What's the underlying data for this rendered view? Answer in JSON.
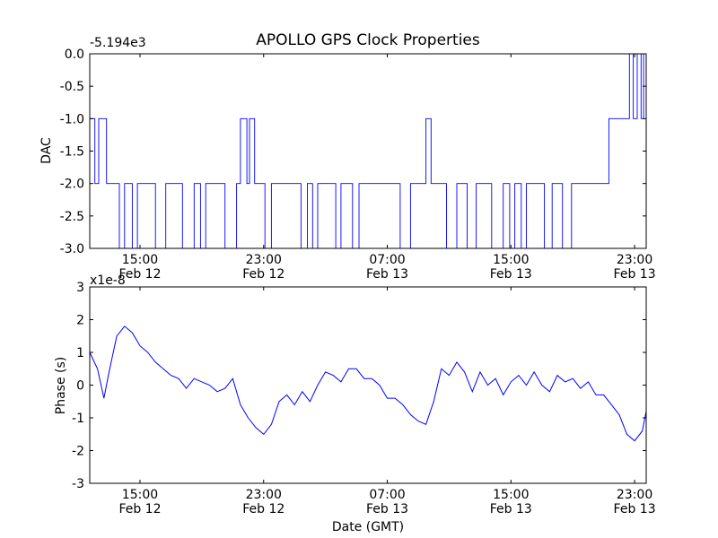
{
  "figure": {
    "title": "APOLLO GPS Clock Properties",
    "xlabel": "Date (GMT)",
    "colors": {
      "series": "#0000ff",
      "axes": "#000000",
      "background": "#ffffff"
    }
  },
  "chart_data": [
    {
      "type": "line",
      "title": "APOLLO GPS Clock Properties",
      "ylabel": "DAC",
      "offset_label": "-5.194e3",
      "ylim": [
        -3.0,
        0.0
      ],
      "yticks": [
        "0.0",
        "-0.5",
        "-1.0",
        "-1.5",
        "-2.0",
        "-2.5",
        "-3.0"
      ],
      "xlim": [
        "Feb 12 11:45",
        "Feb 13 23:45"
      ],
      "xticks": [
        {
          "time": "15:00",
          "date": "Feb 12"
        },
        {
          "time": "23:00",
          "date": "Feb 12"
        },
        {
          "time": "07:00",
          "date": "Feb 13"
        },
        {
          "time": "15:00",
          "date": "Feb 13"
        },
        {
          "time": "23:00",
          "date": "Feb 13"
        }
      ],
      "grid": false,
      "series": [
        {
          "color": "#0000ff",
          "step": true,
          "x": [
            "Feb 12 11:45",
            "Feb 12 12:05",
            "Feb 12 12:20",
            "Feb 12 12:35",
            "Feb 12 12:50",
            "Feb 12 13:15",
            "Feb 12 13:40",
            "Feb 12 14:00",
            "Feb 12 14:30",
            "Feb 12 14:50",
            "Feb 12 15:30",
            "Feb 12 16:00",
            "Feb 12 16:40",
            "Feb 12 17:20",
            "Feb 12 17:45",
            "Feb 12 18:30",
            "Feb 12 18:55",
            "Feb 12 19:15",
            "Feb 12 19:50",
            "Feb 12 20:30",
            "Feb 12 21:15",
            "Feb 12 21:30",
            "Feb 12 21:55",
            "Feb 12 22:05",
            "Feb 12 22:25",
            "Feb 12 22:45",
            "Feb 12 23:05",
            "Feb 12 23:30",
            "Feb 13 00:10",
            "Feb 13 00:50",
            "Feb 13 01:25",
            "Feb 13 01:50",
            "Feb 13 02:10",
            "Feb 13 02:30",
            "Feb 13 03:00",
            "Feb 13 03:40",
            "Feb 13 04:00",
            "Feb 13 04:20",
            "Feb 13 04:45",
            "Feb 13 05:10",
            "Feb 13 05:45",
            "Feb 13 06:30",
            "Feb 13 07:10",
            "Feb 13 07:50",
            "Feb 13 08:30",
            "Feb 13 09:05",
            "Feb 13 09:30",
            "Feb 13 09:50",
            "Feb 13 10:25",
            "Feb 13 10:50",
            "Feb 13 11:30",
            "Feb 13 12:10",
            "Feb 13 12:45",
            "Feb 13 13:10",
            "Feb 13 13:45",
            "Feb 13 14:30",
            "Feb 13 14:55",
            "Feb 13 15:15",
            "Feb 13 15:40",
            "Feb 13 16:00",
            "Feb 13 16:40",
            "Feb 13 17:10",
            "Feb 13 17:40",
            "Feb 13 18:20",
            "Feb 13 18:55",
            "Feb 13 19:30",
            "Feb 13 20:00",
            "Feb 13 20:30",
            "Feb 13 21:20",
            "Feb 13 22:00",
            "Feb 13 22:40",
            "Feb 13 22:55",
            "Feb 13 23:10",
            "Feb 13 23:25",
            "Feb 13 23:35",
            "Feb 13 23:45"
          ],
          "values": [
            -1.0,
            -2.0,
            -1.0,
            -1.0,
            -2.0,
            -2.0,
            -3.0,
            -2.0,
            -3.0,
            -2.0,
            -2.0,
            -3.0,
            -2.0,
            -2.0,
            -3.0,
            -2.0,
            -3.0,
            -2.0,
            -2.0,
            -3.0,
            -2.0,
            -1.0,
            -2.0,
            -1.0,
            -2.0,
            -2.0,
            -3.0,
            -2.0,
            -2.0,
            -2.0,
            -3.0,
            -2.0,
            -3.0,
            -2.0,
            -2.0,
            -3.0,
            -2.0,
            -2.0,
            -3.0,
            -2.0,
            -2.0,
            -2.0,
            -2.0,
            -3.0,
            -2.0,
            -2.0,
            -1.0,
            -2.0,
            -2.0,
            -3.0,
            -2.0,
            -3.0,
            -2.0,
            -2.0,
            -3.0,
            -2.0,
            -3.0,
            -2.0,
            -3.0,
            -2.0,
            -2.0,
            -3.0,
            -2.0,
            -3.0,
            -2.0,
            -2.0,
            -2.0,
            -2.0,
            -1.0,
            -1.0,
            0.0,
            -1.0,
            0.0,
            -1.0,
            0.0,
            -1.0
          ]
        }
      ]
    },
    {
      "type": "line",
      "ylabel": "Phase (s)",
      "xlabel": "Date (GMT)",
      "offset_label": "x1e-8",
      "ylim": [
        -3,
        3
      ],
      "yticks": [
        "3",
        "2",
        "1",
        "0",
        "-1",
        "-2",
        "-3"
      ],
      "xlim": [
        "Feb 12 11:45",
        "Feb 13 23:45"
      ],
      "xticks": [
        {
          "time": "15:00",
          "date": "Feb 12"
        },
        {
          "time": "23:00",
          "date": "Feb 12"
        },
        {
          "time": "07:00",
          "date": "Feb 13"
        },
        {
          "time": "15:00",
          "date": "Feb 13"
        },
        {
          "time": "23:00",
          "date": "Feb 13"
        }
      ],
      "grid": false,
      "series": [
        {
          "color": "#0000ff",
          "x": [
            "Feb 12 11:45",
            "Feb 12 12:15",
            "Feb 12 12:40",
            "Feb 12 13:00",
            "Feb 12 13:30",
            "Feb 12 14:00",
            "Feb 12 14:30",
            "Feb 12 15:00",
            "Feb 12 15:30",
            "Feb 12 16:00",
            "Feb 12 16:30",
            "Feb 12 17:00",
            "Feb 12 17:30",
            "Feb 12 18:00",
            "Feb 12 18:30",
            "Feb 12 19:00",
            "Feb 12 19:30",
            "Feb 12 20:00",
            "Feb 12 20:30",
            "Feb 12 21:00",
            "Feb 12 21:30",
            "Feb 12 22:00",
            "Feb 12 22:30",
            "Feb 12 23:00",
            "Feb 12 23:30",
            "Feb 13 00:00",
            "Feb 13 00:30",
            "Feb 13 01:00",
            "Feb 13 01:30",
            "Feb 13 02:00",
            "Feb 13 02:30",
            "Feb 13 03:00",
            "Feb 13 03:30",
            "Feb 13 04:00",
            "Feb 13 04:30",
            "Feb 13 05:00",
            "Feb 13 05:30",
            "Feb 13 06:00",
            "Feb 13 06:30",
            "Feb 13 07:00",
            "Feb 13 07:30",
            "Feb 13 08:00",
            "Feb 13 08:30",
            "Feb 13 09:00",
            "Feb 13 09:30",
            "Feb 13 10:00",
            "Feb 13 10:30",
            "Feb 13 11:00",
            "Feb 13 11:30",
            "Feb 13 12:00",
            "Feb 13 12:30",
            "Feb 13 13:00",
            "Feb 13 13:30",
            "Feb 13 14:00",
            "Feb 13 14:30",
            "Feb 13 15:00",
            "Feb 13 15:30",
            "Feb 13 16:00",
            "Feb 13 16:30",
            "Feb 13 17:00",
            "Feb 13 17:30",
            "Feb 13 18:00",
            "Feb 13 18:30",
            "Feb 13 19:00",
            "Feb 13 19:30",
            "Feb 13 20:00",
            "Feb 13 20:30",
            "Feb 13 21:00",
            "Feb 13 21:30",
            "Feb 13 22:00",
            "Feb 13 22:30",
            "Feb 13 23:00",
            "Feb 13 23:30",
            "Feb 13 23:45"
          ],
          "values": [
            1.0,
            0.5,
            -0.4,
            0.4,
            1.5,
            1.8,
            1.6,
            1.2,
            1.0,
            0.7,
            0.5,
            0.3,
            0.2,
            -0.1,
            0.2,
            0.1,
            0.0,
            -0.2,
            -0.1,
            0.2,
            -0.6,
            -1.0,
            -1.3,
            -1.5,
            -1.2,
            -0.5,
            -0.3,
            -0.6,
            -0.2,
            -0.5,
            0.0,
            0.4,
            0.3,
            0.1,
            0.5,
            0.5,
            0.2,
            0.2,
            0.0,
            -0.4,
            -0.4,
            -0.6,
            -0.9,
            -1.1,
            -1.2,
            -0.5,
            0.5,
            0.3,
            0.7,
            0.4,
            -0.2,
            0.4,
            0.0,
            0.2,
            -0.3,
            0.1,
            0.3,
            0.0,
            0.4,
            0.0,
            -0.2,
            0.3,
            0.1,
            0.2,
            -0.1,
            0.1,
            -0.3,
            -0.3,
            -0.6,
            -0.9,
            -1.5,
            -1.7,
            -1.4,
            -0.8
          ]
        }
      ]
    }
  ]
}
